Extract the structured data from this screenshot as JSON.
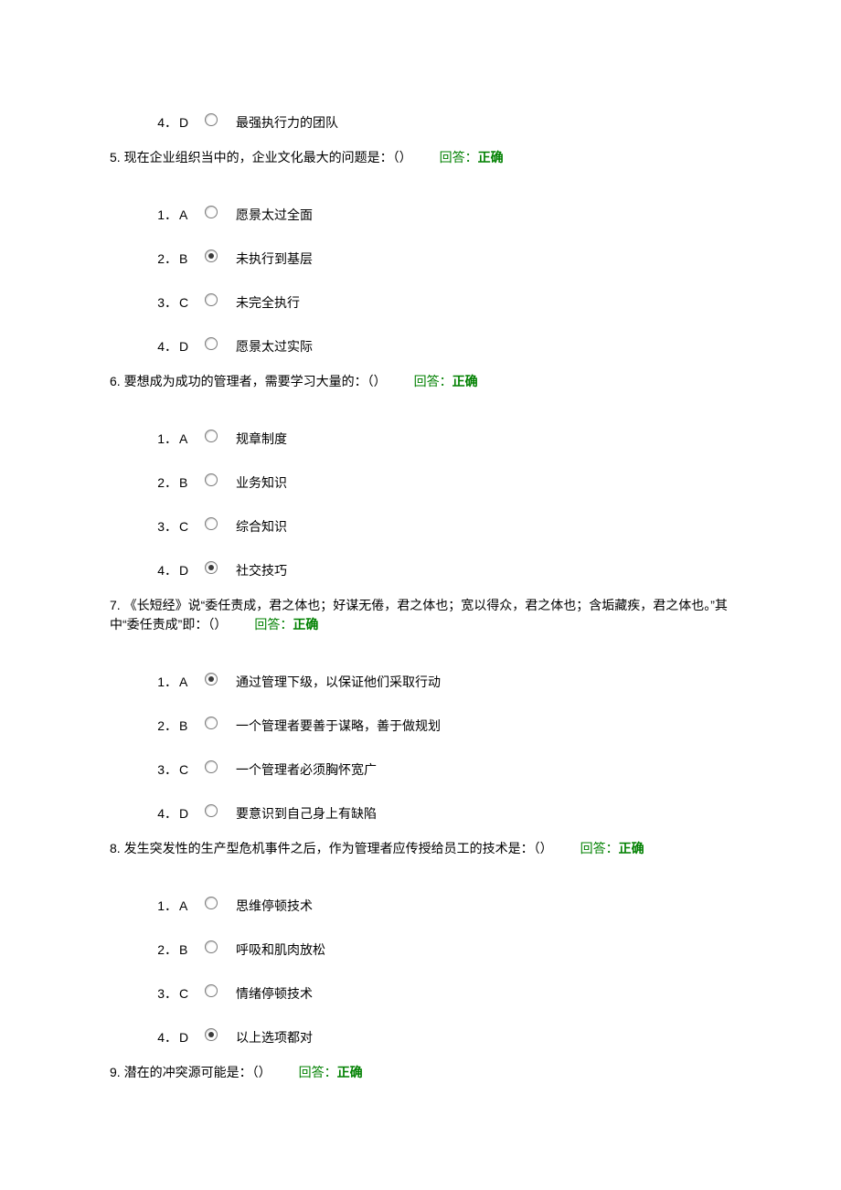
{
  "colors": {
    "text": "#000000",
    "answer_green": "#008000",
    "background": "#ffffff",
    "radio_border": "#7a7a7a",
    "radio_fill": "#3b3b3b"
  },
  "typography": {
    "font_family": "Microsoft YaHei",
    "font_size_pt": 10.5,
    "line_height": 1.5
  },
  "labels": {
    "answer_prefix": "回答：",
    "answer_correct": "正确"
  },
  "leading_option": {
    "index": "4",
    "dot": "．",
    "letter": "D",
    "selected": false,
    "text": "最强执行力的团队"
  },
  "questions": [
    {
      "number": "5.",
      "text": "现在企业组织当中的，企业文化最大的问题是：（）",
      "answer_status": "正确",
      "options": [
        {
          "index": "1",
          "dot": "．",
          "letter": "A",
          "selected": false,
          "text": "愿景太过全面"
        },
        {
          "index": "2",
          "dot": "．",
          "letter": "B",
          "selected": true,
          "text": "未执行到基层"
        },
        {
          "index": "3",
          "dot": "．",
          "letter": "C",
          "selected": false,
          "text": "未完全执行"
        },
        {
          "index": "4",
          "dot": "．",
          "letter": "D",
          "selected": false,
          "text": "愿景太过实际"
        }
      ]
    },
    {
      "number": "6.",
      "text": "要想成为成功的管理者，需要学习大量的：（）",
      "answer_status": "正确",
      "options": [
        {
          "index": "1",
          "dot": "．",
          "letter": "A",
          "selected": false,
          "text": "规章制度"
        },
        {
          "index": "2",
          "dot": "．",
          "letter": "B",
          "selected": false,
          "text": "业务知识"
        },
        {
          "index": "3",
          "dot": "．",
          "letter": "C",
          "selected": false,
          "text": "综合知识"
        },
        {
          "index": "4",
          "dot": "．",
          "letter": "D",
          "selected": true,
          "text": "社交技巧"
        }
      ]
    },
    {
      "number": "7.",
      "text": "《长短经》说“委任责成，君之体也；好谋无倦，君之体也；宽以得众，君之体也；含垢藏疾，君之体也。”其中“委任责成”即：（）",
      "answer_status": "正确",
      "options": [
        {
          "index": "1",
          "dot": "．",
          "letter": "A",
          "selected": true,
          "text": "通过管理下级，以保证他们采取行动"
        },
        {
          "index": "2",
          "dot": "．",
          "letter": "B",
          "selected": false,
          "text": "一个管理者要善于谋略，善于做规划"
        },
        {
          "index": "3",
          "dot": "．",
          "letter": "C",
          "selected": false,
          "text": "一个管理者必须胸怀宽广"
        },
        {
          "index": "4",
          "dot": "．",
          "letter": "D",
          "selected": false,
          "text": "要意识到自己身上有缺陷"
        }
      ]
    },
    {
      "number": "8.",
      "text": "发生突发性的生产型危机事件之后，作为管理者应传授给员工的技术是：（）",
      "answer_status": "正确",
      "options": [
        {
          "index": "1",
          "dot": "．",
          "letter": "A",
          "selected": false,
          "text": "思维停顿技术"
        },
        {
          "index": "2",
          "dot": "．",
          "letter": "B",
          "selected": false,
          "text": "呼吸和肌肉放松"
        },
        {
          "index": "3",
          "dot": "．",
          "letter": "C",
          "selected": false,
          "text": "情绪停顿技术"
        },
        {
          "index": "4",
          "dot": "．",
          "letter": "D",
          "selected": true,
          "text": "以上选项都对"
        }
      ]
    },
    {
      "number": "9.",
      "text": "潜在的冲突源可能是：（）",
      "answer_status": "正确",
      "options": []
    }
  ]
}
